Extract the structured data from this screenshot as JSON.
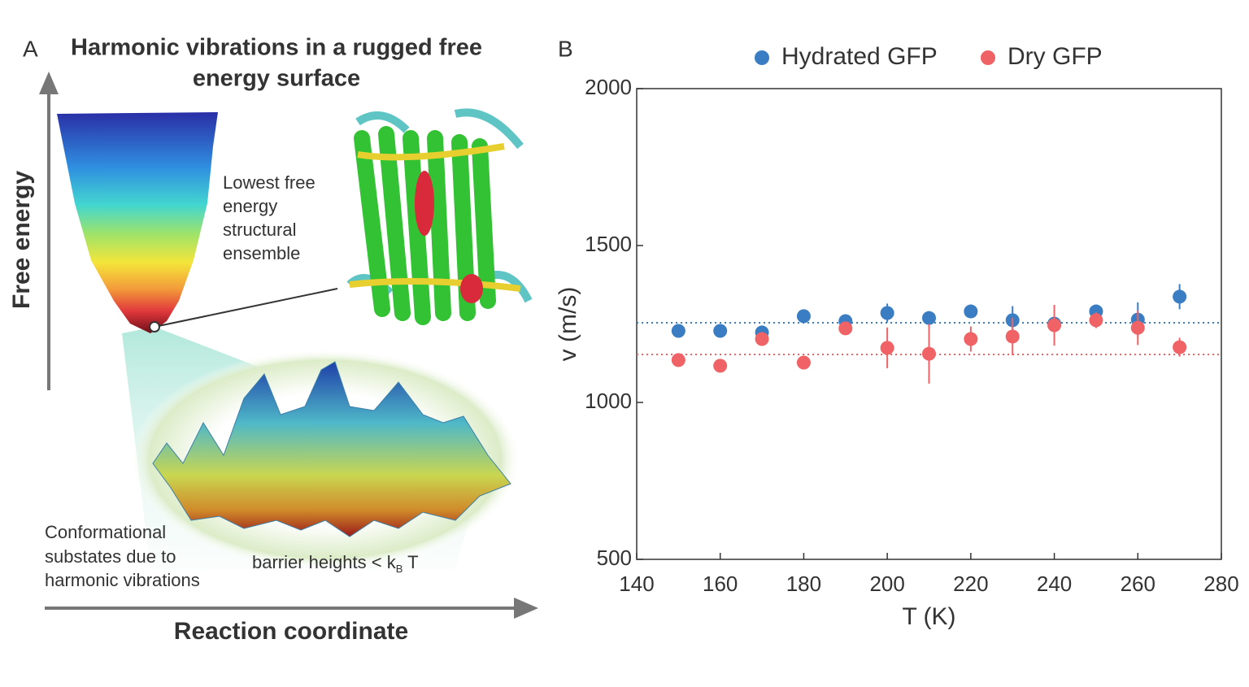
{
  "panel_a": {
    "label": "A",
    "title": [
      "Harmonic vibrations in a rugged free",
      "energy surface"
    ],
    "y_axis_label": "Free energy",
    "ensemble_label": [
      "Lowest free",
      "energy",
      "structural",
      "ensemble"
    ],
    "substates_label": [
      "Conformational",
      "substates due to",
      "harmonic vibrations"
    ],
    "barrier_label": {
      "text": "barrier heights < k",
      "subscript": "B",
      "suffix": " T"
    },
    "x_axis_label": "Reaction coordinate"
  },
  "chart_data": {
    "type": "scatter",
    "panel_label": "B",
    "x_label": "T (K)",
    "y_label": "v (m/s)",
    "x": [
      150,
      160,
      170,
      180,
      190,
      200,
      210,
      220,
      230,
      240,
      250,
      260,
      270
    ],
    "series": [
      {
        "name": "Hydrated GFP",
        "color": "#3a7dc2",
        "values": [
          1228,
          1228,
          1223,
          1275,
          1259,
          1285,
          1269,
          1290,
          1262,
          1251,
          1290,
          1264,
          1337
        ],
        "errors": [
          8,
          8,
          10,
          10,
          12,
          30,
          10,
          10,
          45,
          15,
          15,
          55,
          40
        ]
      },
      {
        "name": "Dry GFP",
        "color": "#ef6366",
        "values": [
          1135,
          1117,
          1202,
          1127,
          1236,
          1174,
          1155,
          1202,
          1210,
          1246,
          1262,
          1238,
          1176
        ],
        "errors": [
          10,
          20,
          12,
          10,
          20,
          65,
          95,
          40,
          60,
          65,
          25,
          55,
          30
        ]
      }
    ],
    "reference_lines": [
      {
        "value": 1254,
        "color": "#3a7dc2"
      },
      {
        "value": 1153,
        "color": "#ef6366"
      }
    ],
    "xlim": [
      140,
      280
    ],
    "xticks": [
      140,
      160,
      180,
      200,
      220,
      240,
      260,
      280
    ],
    "ylim": [
      500,
      2000
    ],
    "yticks": [
      500,
      1000,
      1500,
      2000
    ],
    "legend": "top"
  }
}
